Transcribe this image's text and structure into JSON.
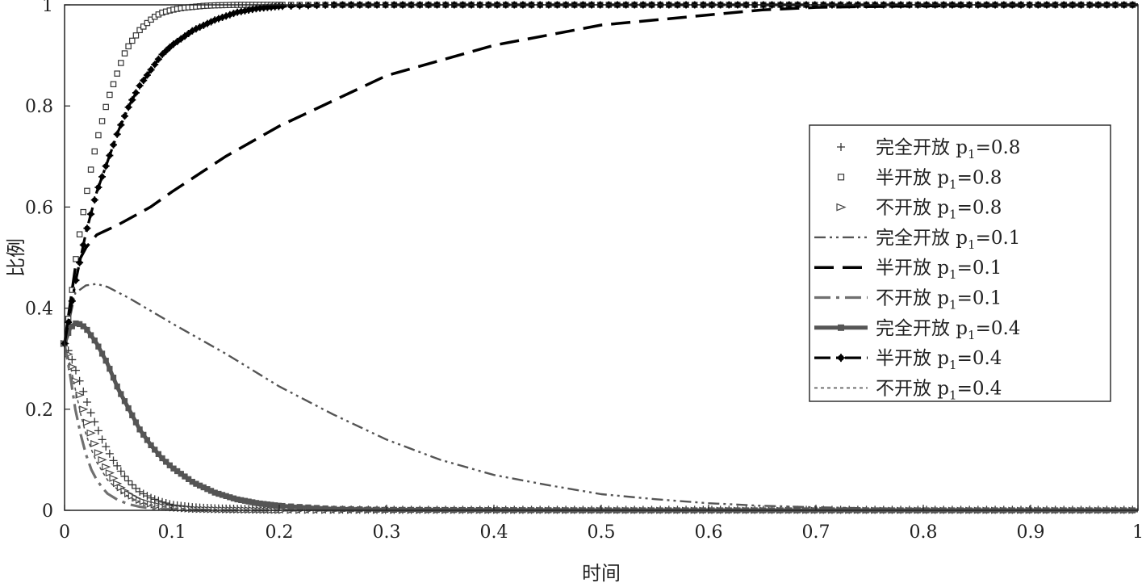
{
  "chart_data": {
    "type": "line",
    "xlabel": "时间",
    "ylabel": "比例",
    "xlim": [
      0,
      1
    ],
    "ylim": [
      0,
      1
    ],
    "xticks": [
      0,
      0.1,
      0.2,
      0.3,
      0.4,
      0.5,
      0.6,
      0.7,
      0.8,
      0.9,
      1
    ],
    "xtick_labels": [
      "0",
      "0.1",
      "0.2",
      "0.3",
      "0.4",
      "0.5",
      "0.6",
      "0.7",
      "0.8",
      "0.9",
      "1"
    ],
    "yticks": [
      0,
      0.2,
      0.4,
      0.6,
      0.8,
      1
    ],
    "ytick_labels": [
      "0",
      "0.2",
      "0.4",
      "0.6",
      "0.8",
      "1"
    ],
    "grid": false,
    "legend_position": "right",
    "series": [
      {
        "name": "完全开放",
        "name_suffix": "=0.8",
        "color": "#333333",
        "line": "none",
        "marker": "plus",
        "x": [
          0,
          0.005,
          0.01,
          0.015,
          0.02,
          0.025,
          0.03,
          0.035,
          0.04,
          0.045,
          0.05,
          0.055,
          0.06,
          0.065,
          0.07,
          0.08,
          0.09,
          0.1,
          0.12,
          0.14,
          0.16,
          0.2,
          0.3,
          0.5,
          0.7,
          1.0
        ],
        "y": [
          0.33,
          0.31,
          0.28,
          0.25,
          0.22,
          0.19,
          0.165,
          0.14,
          0.12,
          0.1,
          0.085,
          0.07,
          0.057,
          0.046,
          0.037,
          0.025,
          0.017,
          0.011,
          0.006,
          0.004,
          0.003,
          0.002,
          0.001,
          0.001,
          0.001,
          0.001
        ]
      },
      {
        "name": "半开放",
        "name_suffix": "=0.8",
        "color": "#333333",
        "line": "none",
        "marker": "square",
        "x": [
          0,
          0.005,
          0.01,
          0.015,
          0.02,
          0.025,
          0.03,
          0.035,
          0.04,
          0.045,
          0.05,
          0.055,
          0.06,
          0.065,
          0.07,
          0.075,
          0.08,
          0.085,
          0.09,
          0.1,
          0.11,
          0.12,
          0.13,
          0.14,
          0.16,
          0.2,
          0.3,
          0.5,
          0.7,
          1.0
        ],
        "y": [
          0.33,
          0.4,
          0.49,
          0.56,
          0.62,
          0.68,
          0.73,
          0.77,
          0.81,
          0.84,
          0.87,
          0.9,
          0.92,
          0.935,
          0.95,
          0.96,
          0.97,
          0.978,
          0.984,
          0.99,
          0.994,
          0.996,
          0.998,
          0.999,
          1.0,
          1.0,
          1.0,
          1.0,
          1.0,
          1.0
        ]
      },
      {
        "name": "不开放",
        "name_suffix": "=0.8",
        "color": "#444444",
        "line": "none",
        "marker": "triangle",
        "x": [
          0,
          0.005,
          0.01,
          0.015,
          0.02,
          0.025,
          0.03,
          0.035,
          0.04,
          0.045,
          0.05,
          0.055,
          0.06,
          0.07,
          0.08,
          0.09,
          0.1,
          0.12,
          0.15,
          0.2,
          0.3,
          0.5,
          0.7,
          1.0
        ],
        "y": [
          0.33,
          0.3,
          0.26,
          0.22,
          0.18,
          0.15,
          0.12,
          0.1,
          0.08,
          0.065,
          0.05,
          0.04,
          0.032,
          0.02,
          0.013,
          0.008,
          0.005,
          0.002,
          0.001,
          0.0,
          0.0,
          0.0,
          0.0,
          0.0
        ]
      },
      {
        "name": "完全开放",
        "name_suffix": "=0.1",
        "color": "#555555",
        "line": "dashdotdot",
        "marker": "none",
        "x": [
          0,
          0.01,
          0.02,
          0.03,
          0.04,
          0.06,
          0.08,
          0.1,
          0.15,
          0.2,
          0.25,
          0.3,
          0.35,
          0.4,
          0.45,
          0.5,
          0.55,
          0.6,
          0.65,
          0.7,
          0.75,
          0.8,
          1.0
        ],
        "y": [
          0.33,
          0.43,
          0.445,
          0.448,
          0.442,
          0.42,
          0.395,
          0.37,
          0.31,
          0.245,
          0.19,
          0.14,
          0.1,
          0.07,
          0.05,
          0.032,
          0.022,
          0.014,
          0.009,
          0.006,
          0.004,
          0.003,
          0.001
        ]
      },
      {
        "name": "半开放",
        "name_suffix": "=0.1",
        "color": "#000000",
        "line": "dash",
        "marker": "none",
        "x": [
          0,
          0.01,
          0.02,
          0.03,
          0.05,
          0.08,
          0.1,
          0.15,
          0.2,
          0.25,
          0.3,
          0.35,
          0.4,
          0.45,
          0.5,
          0.55,
          0.6,
          0.65,
          0.7,
          0.8,
          0.9,
          1.0
        ],
        "y": [
          0.33,
          0.48,
          0.52,
          0.545,
          0.565,
          0.6,
          0.63,
          0.7,
          0.76,
          0.81,
          0.86,
          0.89,
          0.92,
          0.94,
          0.96,
          0.97,
          0.98,
          0.99,
          0.995,
          0.998,
          0.999,
          1.0
        ]
      },
      {
        "name": "不开放",
        "name_suffix": "=0.1",
        "color": "#707070",
        "line": "dashdot",
        "marker": "none",
        "x": [
          0,
          0.005,
          0.01,
          0.015,
          0.02,
          0.025,
          0.03,
          0.035,
          0.04,
          0.05,
          0.06,
          0.07,
          0.08,
          0.1,
          0.15,
          0.2,
          0.3,
          0.5,
          0.7,
          1.0
        ],
        "y": [
          0.33,
          0.27,
          0.2,
          0.15,
          0.11,
          0.08,
          0.06,
          0.045,
          0.033,
          0.02,
          0.012,
          0.007,
          0.004,
          0.002,
          0.0,
          0.0,
          0.0,
          0.0,
          0.0,
          0.0
        ]
      },
      {
        "name": "完全开放",
        "name_suffix": "=0.4",
        "color": "#555555",
        "line": "solid",
        "marker": "square-filled",
        "x": [
          0,
          0.005,
          0.01,
          0.015,
          0.02,
          0.03,
          0.04,
          0.05,
          0.06,
          0.07,
          0.08,
          0.09,
          0.1,
          0.12,
          0.14,
          0.16,
          0.18,
          0.2,
          0.25,
          0.3,
          0.5,
          0.7,
          1.0
        ],
        "y": [
          0.33,
          0.36,
          0.37,
          0.368,
          0.36,
          0.33,
          0.29,
          0.24,
          0.2,
          0.16,
          0.13,
          0.105,
          0.085,
          0.055,
          0.035,
          0.022,
          0.014,
          0.009,
          0.003,
          0.001,
          0.0,
          0.0,
          0.0
        ]
      },
      {
        "name": "半开放",
        "name_suffix": "=0.4",
        "color": "#000000",
        "line": "dashdot",
        "marker": "star",
        "x": [
          0,
          0.01,
          0.02,
          0.03,
          0.04,
          0.05,
          0.06,
          0.07,
          0.08,
          0.09,
          0.1,
          0.12,
          0.14,
          0.16,
          0.18,
          0.2,
          0.25,
          0.3,
          0.5,
          0.7,
          1.0
        ],
        "y": [
          0.33,
          0.45,
          0.55,
          0.63,
          0.69,
          0.75,
          0.8,
          0.84,
          0.87,
          0.9,
          0.92,
          0.95,
          0.97,
          0.985,
          0.993,
          0.997,
          1.0,
          1.0,
          1.0,
          1.0,
          1.0
        ]
      },
      {
        "name": "不开放",
        "name_suffix": "=0.4",
        "color": "#555555",
        "line": "dot",
        "marker": "none",
        "x": [
          0,
          0.005,
          0.01,
          0.015,
          0.02,
          0.025,
          0.03,
          0.04,
          0.05,
          0.06,
          0.07,
          0.08,
          0.1,
          0.12,
          0.15,
          0.2,
          0.3,
          0.5,
          0.7,
          1.0
        ],
        "y": [
          0.33,
          0.29,
          0.24,
          0.19,
          0.15,
          0.12,
          0.095,
          0.06,
          0.04,
          0.026,
          0.017,
          0.011,
          0.005,
          0.002,
          0.001,
          0.0,
          0.0,
          0.0,
          0.0,
          0.0
        ]
      }
    ]
  }
}
